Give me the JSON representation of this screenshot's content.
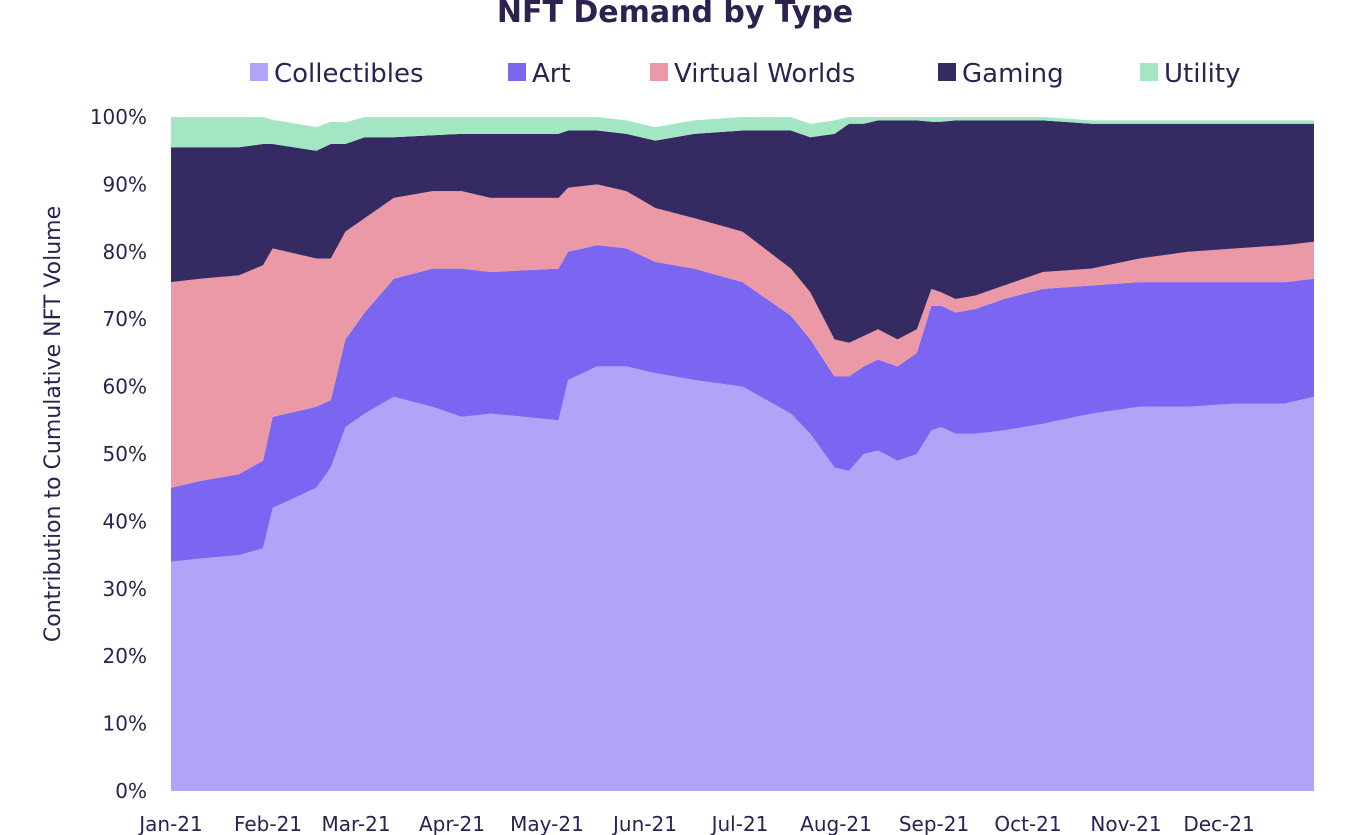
{
  "chart_data": {
    "type": "area",
    "stacked": true,
    "normalized": true,
    "title": "NFT Demand by Type",
    "ylabel": "Contribution to Cumulative NFT Volume",
    "xlabel": "",
    "ylim": [
      0,
      100
    ],
    "y_ticks": [
      "0%",
      "10%",
      "20%",
      "30%",
      "40%",
      "50%",
      "60%",
      "70%",
      "80%",
      "90%",
      "100%"
    ],
    "x_ticks": [
      "Jan-21",
      "Feb-21",
      "Mar-21",
      "Apr-21",
      "May-21",
      "Jun-21",
      "Jul-21",
      "Aug-21",
      "Sep-21",
      "Oct-21",
      "Nov-21",
      "Dec-21"
    ],
    "x_range_months": [
      0,
      11.8
    ],
    "legend_position": "top",
    "grid": false,
    "x": [
      0,
      0.3,
      0.7,
      0.95,
      1.05,
      1.5,
      1.65,
      1.8,
      2.0,
      2.3,
      2.7,
      3.0,
      3.3,
      4.0,
      4.1,
      4.4,
      4.7,
      5.0,
      5.4,
      5.9,
      6.4,
      6.6,
      6.85,
      7.0,
      7.15,
      7.3,
      7.5,
      7.7,
      7.85,
      7.95,
      8.1,
      8.3,
      8.6,
      9.0,
      9.5,
      10.0,
      10.5,
      11.0,
      11.5,
      11.8
    ],
    "series": [
      {
        "name": "Collectibles",
        "color": "#b1a3f7",
        "values": [
          34,
          34.5,
          35,
          36,
          42,
          45,
          48,
          54,
          56,
          58.5,
          57,
          55.5,
          56,
          55,
          61,
          63,
          63,
          62,
          61,
          60,
          56,
          53,
          48,
          47.5,
          50,
          50.5,
          49,
          50,
          53.5,
          54,
          53,
          53,
          53.5,
          54.5,
          56,
          57,
          57,
          57.5,
          57.5,
          58.5
        ]
      },
      {
        "name": "Art",
        "color": "#7b66f2",
        "values": [
          11,
          11.5,
          12,
          13,
          13.5,
          12,
          10,
          13,
          15,
          17.5,
          20.5,
          22,
          21,
          22.5,
          19,
          18,
          17.5,
          16.5,
          16.5,
          15.5,
          14.5,
          14,
          13.5,
          14,
          13,
          13.5,
          14,
          15,
          18.5,
          18,
          18,
          18.5,
          19.5,
          20,
          19,
          18.5,
          18.5,
          18,
          18,
          17.5
        ]
      },
      {
        "name": "Virtual Worlds",
        "color": "#eb99a6",
        "values": [
          30.5,
          30,
          29.5,
          29,
          25,
          22,
          21,
          16,
          14,
          12,
          11.5,
          11.5,
          11,
          10.5,
          9.5,
          9,
          8.5,
          8,
          7.5,
          7.5,
          7,
          7,
          5.5,
          5,
          4.5,
          4.5,
          4,
          3.5,
          2.5,
          2,
          2,
          2,
          2,
          2.5,
          2.5,
          3.5,
          4.5,
          5,
          5.5,
          5.5
        ]
      },
      {
        "name": "Gaming",
        "color": "#352a62",
        "values": [
          20,
          19.5,
          19,
          18,
          15.5,
          16,
          17,
          13,
          12,
          9,
          8.3,
          8.5,
          9.5,
          9.5,
          8.5,
          8,
          8.5,
          10,
          12.5,
          15,
          20.5,
          23,
          30.5,
          32.5,
          31.5,
          31,
          32.5,
          31,
          24.8,
          25.3,
          26.5,
          26,
          24.5,
          22.5,
          21.5,
          20,
          19,
          18.5,
          18,
          17.5
        ]
      },
      {
        "name": "Utility",
        "color": "#a3e6c4",
        "values": [
          4.5,
          4.5,
          4.5,
          4,
          3.6,
          3.5,
          3.3,
          3.2,
          3,
          3,
          2.7,
          2.5,
          2.5,
          2.5,
          2,
          2,
          2,
          2,
          2,
          2,
          2,
          2,
          2,
          1.0,
          1.0,
          0.5,
          0.5,
          0.5,
          0.7,
          0.7,
          0.5,
          0.5,
          0.5,
          0.5,
          0.5,
          0.5,
          0.5,
          0.5,
          0.5,
          0.5
        ]
      }
    ]
  }
}
